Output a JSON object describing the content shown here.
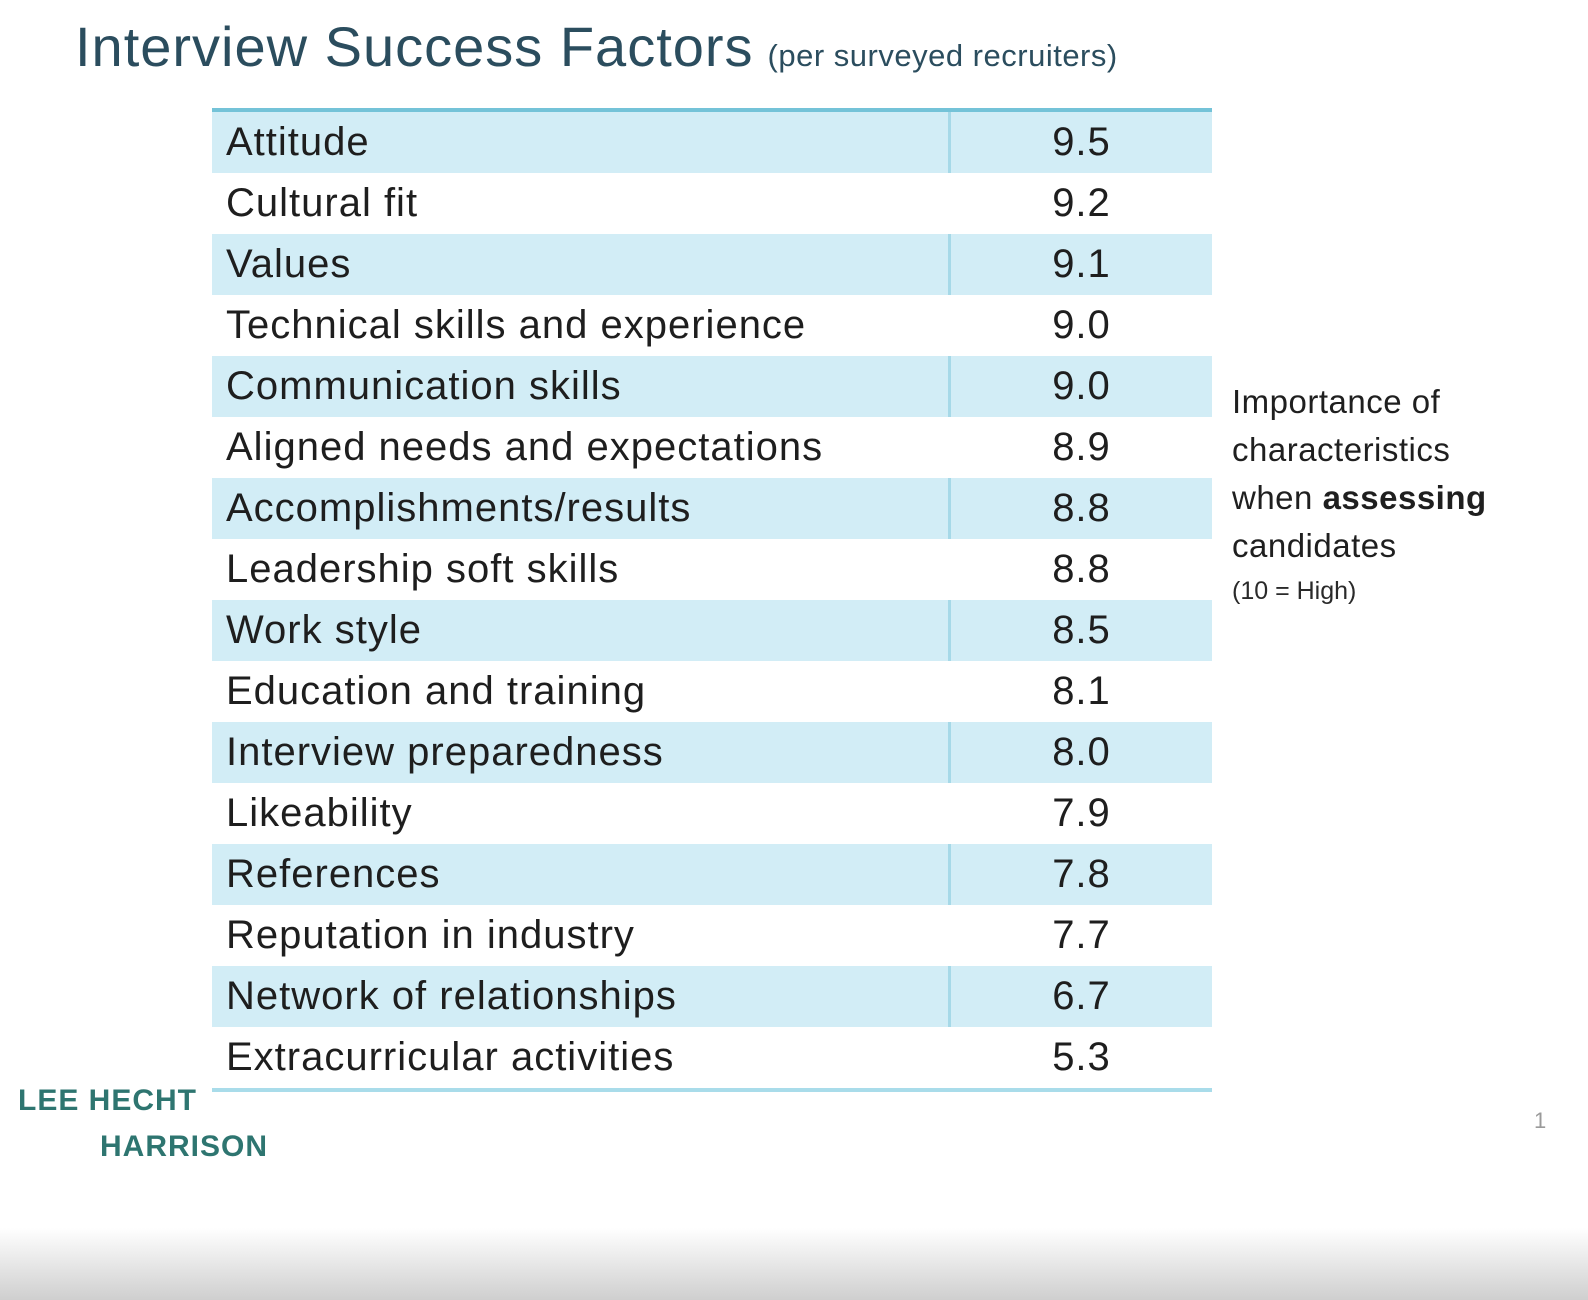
{
  "title": {
    "main": "Interview Success Factors",
    "qualifier": "(per surveyed recruiters)"
  },
  "table": {
    "rows": [
      {
        "label": "Attitude",
        "value": "9.5"
      },
      {
        "label": "Cultural fit",
        "value": "9.2"
      },
      {
        "label": "Values",
        "value": "9.1"
      },
      {
        "label": "Technical skills and experience",
        "value": "9.0"
      },
      {
        "label": "Communication skills",
        "value": "9.0"
      },
      {
        "label": "Aligned needs and expectations",
        "value": "8.9"
      },
      {
        "label": "Accomplishments/results",
        "value": "8.8"
      },
      {
        "label": "Leadership soft skills",
        "value": "8.8"
      },
      {
        "label": "Work style",
        "value": "8.5"
      },
      {
        "label": "Education and training",
        "value": "8.1"
      },
      {
        "label": "Interview preparedness",
        "value": "8.0"
      },
      {
        "label": "Likeability",
        "value": "7.9"
      },
      {
        "label": "References",
        "value": "7.8"
      },
      {
        "label": "Reputation in industry",
        "value": "7.7"
      },
      {
        "label": "Network of relationships",
        "value": "6.7"
      },
      {
        "label": "Extracurricular activities",
        "value": "5.3"
      }
    ]
  },
  "chart_data": {
    "type": "table",
    "title": "Interview Success Factors (per surveyed recruiters)",
    "categories": [
      "Attitude",
      "Cultural fit",
      "Values",
      "Technical skills and experience",
      "Communication skills",
      "Aligned needs and expectations",
      "Accomplishments/results",
      "Leadership soft skills",
      "Work style",
      "Education and training",
      "Interview preparedness",
      "Likeability",
      "References",
      "Reputation in industry",
      "Network of relationships",
      "Extracurricular activities"
    ],
    "values": [
      9.5,
      9.2,
      9.1,
      9.0,
      9.0,
      8.9,
      8.8,
      8.8,
      8.5,
      8.1,
      8.0,
      7.9,
      7.8,
      7.7,
      6.7,
      5.3
    ],
    "scale_note": "Importance of characteristics when assessing candidates (10 = High)"
  },
  "side_note": {
    "line1": "Importance of",
    "line2": "characteristics",
    "line3_prefix": "when ",
    "line3_bold": "assessing",
    "line4": "candidates",
    "scale": "(10 = High)"
  },
  "logo": {
    "line1": "LEE HECHT",
    "line2": "HARRISON"
  },
  "page_number": "1",
  "colors": {
    "title_text": "#2b4d5e",
    "row_shade": "#d2edf6",
    "table_top_rule": "#74c3d8",
    "table_bottom_rule": "#a9dcea",
    "column_divider": "#a6d9e8",
    "body_text": "#1e1e1e",
    "logo_teal": "#2e7570",
    "page_number_gray": "#9a9a9a"
  }
}
